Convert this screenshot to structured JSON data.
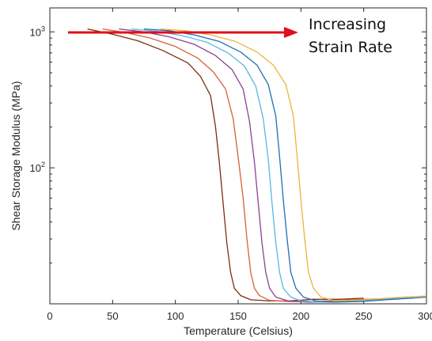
{
  "chart_data": {
    "type": "line",
    "title": "",
    "xlabel": "Temperature (Celsius)",
    "ylabel": "Shear Storage Modulus (MPa)",
    "xlim": [
      0,
      300
    ],
    "ylim": [
      10,
      1500
    ],
    "yscale": "log",
    "x_ticks": [
      "0",
      "50",
      "100",
      "150",
      "200",
      "250",
      "300"
    ],
    "y_ticks": [
      {
        "value": 1000,
        "base": "10",
        "exp": "3"
      },
      {
        "value": 100,
        "base": "10",
        "exp": "2"
      }
    ],
    "grid": false,
    "annotation": {
      "line1": "Increasing",
      "line2": "Strain Rate",
      "arrow_color": "#e0101a"
    },
    "series": [
      {
        "color": "#7a2e0c",
        "x": [
          30,
          50,
          70,
          90,
          110,
          120,
          128,
          132,
          135,
          138,
          141,
          144,
          147,
          152,
          160,
          175,
          190,
          210,
          230,
          250
        ],
        "y": [
          1050,
          960,
          860,
          730,
          590,
          470,
          340,
          200,
          110,
          55,
          28,
          17,
          13,
          11.5,
          10.7,
          10.5,
          10.5,
          10.8,
          10.8,
          11
        ]
      },
      {
        "color": "#d95f35",
        "x": [
          42,
          60,
          80,
          100,
          118,
          130,
          140,
          146,
          150,
          154,
          157,
          160,
          163,
          167,
          175,
          190,
          210,
          230,
          250,
          265
        ],
        "y": [
          1050,
          990,
          900,
          780,
          640,
          510,
          380,
          230,
          120,
          60,
          30,
          17,
          13,
          11.5,
          10.6,
          10.4,
          10.4,
          10.6,
          10.8,
          10.9
        ]
      },
      {
        "color": "#8e3e99",
        "x": [
          55,
          75,
          95,
          115,
          132,
          145,
          154,
          159,
          163,
          166,
          169,
          172,
          175,
          180,
          190,
          205,
          225,
          245,
          265,
          280
        ],
        "y": [
          1050,
          1000,
          920,
          810,
          670,
          530,
          380,
          220,
          110,
          55,
          28,
          17,
          13,
          11.2,
          10.5,
          10.3,
          10.3,
          10.6,
          10.8,
          11
        ]
      },
      {
        "color": "#5ab7e0",
        "x": [
          65,
          85,
          105,
          125,
          142,
          155,
          164,
          170,
          174,
          177,
          180,
          183,
          186,
          192,
          200,
          215,
          235,
          255,
          275,
          290
        ],
        "y": [
          1050,
          1010,
          940,
          840,
          700,
          560,
          400,
          230,
          115,
          55,
          28,
          17,
          13,
          11.2,
          10.5,
          10.3,
          10.4,
          10.6,
          10.9,
          11.1
        ]
      },
      {
        "color": "#1f6fb2",
        "x": [
          75,
          95,
          115,
          135,
          152,
          165,
          174,
          180,
          183,
          186,
          189,
          192,
          196,
          202,
          212,
          228,
          248,
          268,
          288,
          300
        ],
        "y": [
          1050,
          1020,
          950,
          850,
          710,
          570,
          410,
          240,
          120,
          58,
          30,
          17,
          13,
          11.2,
          10.5,
          10.3,
          10.4,
          10.7,
          11,
          11.2
        ]
      },
      {
        "color": "#eab43b",
        "x": [
          88,
          108,
          128,
          148,
          165,
          178,
          188,
          194,
          197,
          200,
          203,
          206,
          210,
          216,
          226,
          242,
          262,
          282,
          300
        ],
        "y": [
          1050,
          1020,
          950,
          850,
          710,
          570,
          410,
          240,
          120,
          58,
          30,
          17,
          13,
          11.2,
          10.6,
          10.6,
          10.9,
          11.2,
          11.4
        ]
      }
    ]
  }
}
